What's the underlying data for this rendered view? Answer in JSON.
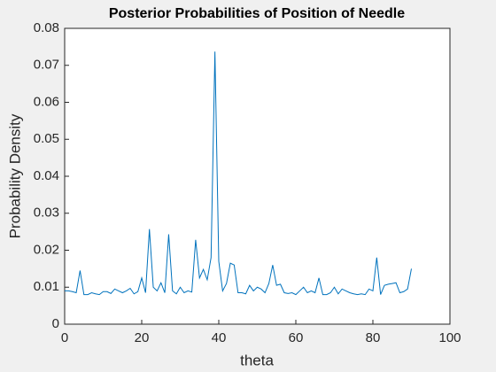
{
  "chart_data": {
    "type": "line",
    "title": "Posterior Probabilities of Position of Needle",
    "xlabel": "theta",
    "ylabel": "Probability Density",
    "x": [
      0,
      1,
      2,
      3,
      4,
      5,
      6,
      7,
      8,
      9,
      10,
      11,
      12,
      13,
      14,
      15,
      16,
      17,
      18,
      19,
      20,
      21,
      22,
      23,
      24,
      25,
      26,
      27,
      28,
      29,
      30,
      31,
      32,
      33,
      34,
      35,
      36,
      37,
      38,
      39,
      40,
      41,
      42,
      43,
      44,
      45,
      46,
      47,
      48,
      49,
      50,
      51,
      52,
      53,
      54,
      55,
      56,
      57,
      58,
      59,
      60,
      61,
      62,
      63,
      64,
      65,
      66,
      67,
      68,
      69,
      70,
      71,
      72,
      73,
      74,
      75,
      76,
      77,
      78,
      79,
      80,
      81,
      82,
      83,
      84,
      85,
      86,
      87,
      88,
      89,
      90
    ],
    "series": [
      {
        "color": "#0072bd",
        "values": [
          0.009,
          0.009,
          0.0088,
          0.0085,
          0.0145,
          0.008,
          0.008,
          0.0085,
          0.0082,
          0.008,
          0.0088,
          0.0088,
          0.0083,
          0.0095,
          0.009,
          0.0085,
          0.009,
          0.0097,
          0.0082,
          0.0088,
          0.0125,
          0.0085,
          0.0257,
          0.01,
          0.009,
          0.0112,
          0.0085,
          0.0243,
          0.009,
          0.0082,
          0.01,
          0.0085,
          0.009,
          0.0087,
          0.0228,
          0.0125,
          0.0148,
          0.012,
          0.018,
          0.0737,
          0.017,
          0.009,
          0.011,
          0.0165,
          0.016,
          0.0085,
          0.0085,
          0.0082,
          0.0105,
          0.009,
          0.01,
          0.0095,
          0.0085,
          0.011,
          0.016,
          0.0105,
          0.0108,
          0.0085,
          0.0083,
          0.0085,
          0.008,
          0.009,
          0.01,
          0.0085,
          0.009,
          0.0085,
          0.0125,
          0.008,
          0.008,
          0.0085,
          0.01,
          0.0082,
          0.0095,
          0.009,
          0.0085,
          0.0082,
          0.008,
          0.0082,
          0.008,
          0.0095,
          0.009,
          0.018,
          0.008,
          0.0105,
          0.0108,
          0.011,
          0.0112,
          0.0085,
          0.0088,
          0.0095,
          0.015
        ]
      }
    ],
    "xlim": [
      0,
      100
    ],
    "xticks": [
      0,
      20,
      40,
      60,
      80,
      100
    ],
    "ylim": [
      0,
      0.08
    ],
    "yticks": [
      0,
      0.01,
      0.02,
      0.03,
      0.04,
      0.05,
      0.06,
      0.07,
      0.08
    ],
    "grid": false
  }
}
